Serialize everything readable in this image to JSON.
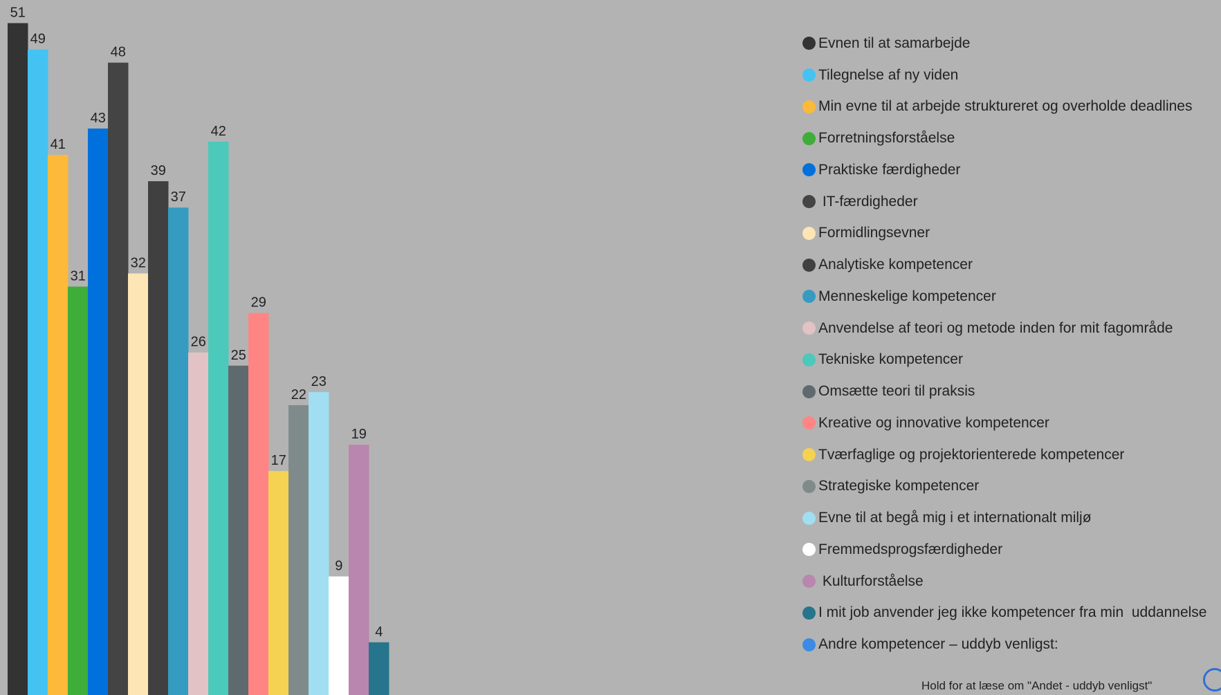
{
  "chart_data": {
    "type": "bar",
    "title": "",
    "xlabel": "",
    "ylabel": "",
    "ylim": [
      0,
      51
    ],
    "grid": false,
    "legend_position": "right",
    "categories": [
      "Evnen til at samarbejde",
      "Tilegnelse af ny viden",
      "Min evne til at arbejde struktureret og overholde deadlines",
      "Forretningsforståelse",
      "Praktiske færdigheder",
      " IT-færdigheder",
      "Formidlingsevner",
      "Analytiske kompetencer",
      "Menneskelige kompetencer",
      "Anvendelse af teori og metode inden for mit fagområde",
      "Tekniske kompetencer",
      "Omsætte teori til praksis",
      "Kreative og innovative kompetencer",
      "Tværfaglige og projektorienterede kompetencer",
      "Strategiske kompetencer",
      "Evne til at begå mig i et internationalt miljø",
      "Fremmedsprogsfærdigheder",
      " Kulturforståelse",
      "I mit job anvender jeg ikke kompetencer fra min  uddannelse",
      "Andre kompetencer – uddyb venligst:"
    ],
    "values": [
      51,
      49,
      41,
      31,
      43,
      48,
      32,
      39,
      37,
      26,
      42,
      25,
      29,
      17,
      22,
      23,
      9,
      19,
      4,
      null
    ],
    "colors": [
      "#333333",
      "#44c3f3",
      "#fdb93a",
      "#3fad3a",
      "#0070dd",
      "#444444",
      "#fee5b5",
      "#404040",
      "#369bc0",
      "#e2c2c4",
      "#4bc9bb",
      "#5f6a6e",
      "#fe8584",
      "#f5d251",
      "#7f8b8b",
      "#a2def1",
      "#ffffff",
      "#b886ae",
      "#26758d",
      "#3b8be5"
    ]
  },
  "footnote": "Hold for at læse om \"Andet - uddyb venligst\"",
  "icons": {
    "info": "info-icon"
  }
}
